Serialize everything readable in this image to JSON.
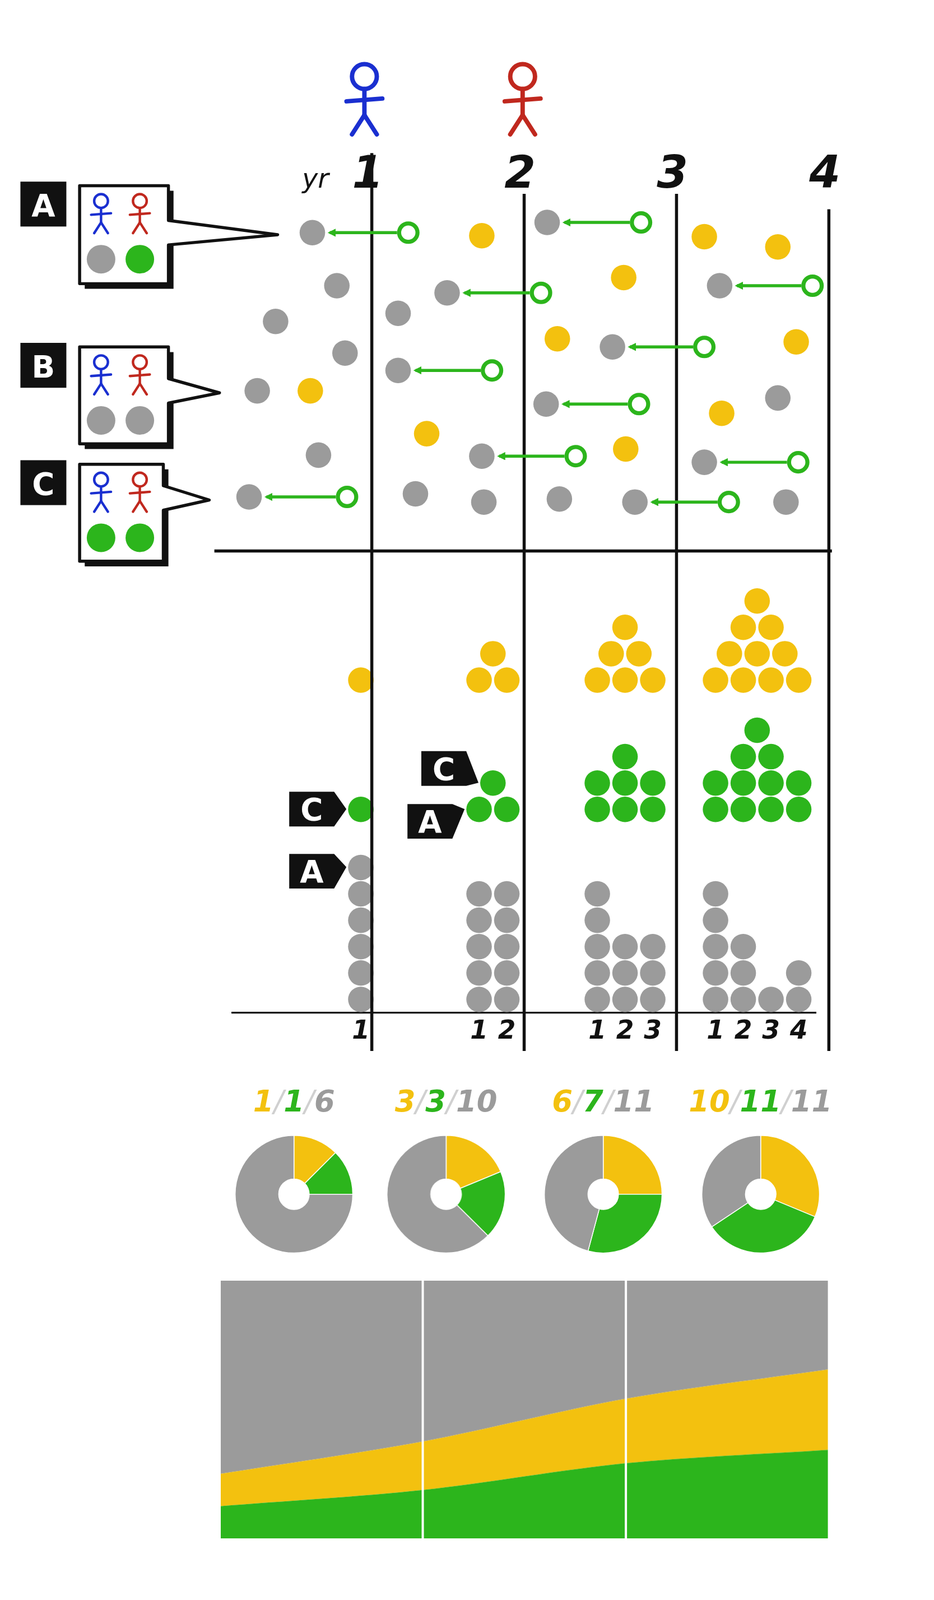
{
  "header": {
    "label": "yr"
  },
  "key_bubbles": [
    {
      "tag": "A",
      "colors": [
        "#9b9b9b",
        "#2cb51c"
      ]
    },
    {
      "tag": "B",
      "colors": [
        "#9b9b9b",
        "#9b9b9b"
      ]
    },
    {
      "tag": "C",
      "colors": [
        "#2cb51c",
        "#2cb51c"
      ]
    }
  ],
  "chart_data": [
    {
      "type": "dot",
      "categories": [
        "1",
        "2",
        "3",
        "4"
      ],
      "tick_labels": "x",
      "series": [
        {
          "name": "1",
          "color": "#9b9b9b",
          "values": [
            6,
            5,
            5,
            5
          ]
        },
        {
          "name": "2",
          "color": "#9b9b9b",
          "values": [
            null,
            5,
            3,
            3
          ]
        },
        {
          "name": "3",
          "color": "#9b9b9b",
          "values": [
            null,
            null,
            3,
            1
          ]
        },
        {
          "name": "4",
          "color": "#9b9b9b",
          "values": [
            null,
            null,
            null,
            2
          ]
        },
        {
          "color": "#2cb51c",
          "values": [
            1,
            3,
            7,
            11
          ]
        },
        {
          "color": "#f3c10f",
          "values": [
            1,
            3,
            6,
            10
          ]
        }
      ],
      "annotations": [
        {
          "text": "C",
          "category": "1"
        },
        {
          "text": "A",
          "category": "1"
        },
        {
          "text": "C",
          "category": "2"
        },
        {
          "text": "A",
          "category": "2"
        }
      ]
    },
    {
      "type": "doughnut",
      "title": "1/1/6",
      "values": [
        1,
        1,
        6
      ],
      "colors": [
        "#f3c10f",
        "#2cb51c",
        "#9b9b9b"
      ]
    },
    {
      "type": "doughnut",
      "title": "3/3/10",
      "values": [
        3,
        3,
        10
      ],
      "colors": [
        "#f3c10f",
        "#2cb51c",
        "#9b9b9b"
      ]
    },
    {
      "type": "doughnut",
      "title": "6/7/11",
      "values": [
        6,
        7,
        11
      ],
      "colors": [
        "#f3c10f",
        "#2cb51c",
        "#9b9b9b"
      ]
    },
    {
      "type": "doughnut",
      "title": "10/11/11",
      "values": [
        10,
        11,
        11
      ],
      "colors": [
        "#f3c10f",
        "#2cb51c",
        "#9b9b9b"
      ]
    },
    {
      "type": "area",
      "stacked": true,
      "grid": true,
      "tick_labels": false,
      "categories": [
        null,
        null,
        null,
        null
      ],
      "ylim": [
        0,
        100
      ],
      "yticks": [
        0,
        100
      ],
      "series": [
        {
          "color": "#2cb51c",
          "values": [
            12.5,
            18.8,
            29.2,
            34.4
          ]
        },
        {
          "color": "#f3c10f",
          "values": [
            12.5,
            18.8,
            25,
            31.2
          ]
        },
        {
          "color": "#9b9b9b",
          "values": [
            75,
            62.4,
            45.8,
            34.4
          ]
        }
      ]
    }
  ]
}
